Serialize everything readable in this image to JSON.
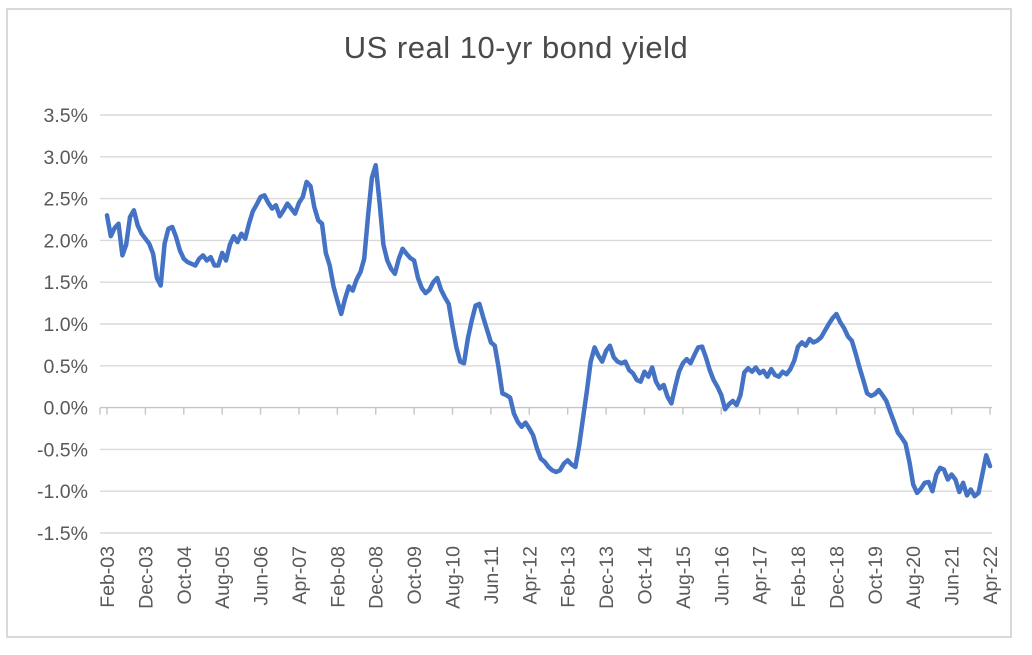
{
  "chart_data": {
    "type": "line",
    "title": "US real 10-yr bond yield",
    "series_name": "US real 10-yr bond yield",
    "legend": "none",
    "grid": "horizontal",
    "x_axis": {
      "start": "Feb-03",
      "end": "Apr-22",
      "frequency": "monthly",
      "points": 231,
      "tick_label_every_n_months": 10,
      "tick_labels": [
        "Feb-03",
        "Dec-03",
        "Oct-04",
        "Aug-05",
        "Jun-06",
        "Apr-07",
        "Feb-08",
        "Dec-08",
        "Oct-09",
        "Aug-10",
        "Jun-11",
        "Apr-12",
        "Feb-13",
        "Dec-13",
        "Oct-14",
        "Aug-15",
        "Jun-16",
        "Apr-17",
        "Feb-18",
        "Dec-18",
        "Oct-19",
        "Aug-20",
        "Jun-21",
        "Apr-22"
      ]
    },
    "y_axis": {
      "min": -1.5,
      "max": 3.5,
      "step": 0.5,
      "format": "percent",
      "tick_labels": [
        "3.5%",
        "3.0%",
        "2.5%",
        "2.0%",
        "1.5%",
        "1.0%",
        "0.5%",
        "0.0%",
        "-0.5%",
        "-1.0%",
        "-1.5%"
      ]
    },
    "values": [
      2.3,
      2.05,
      2.15,
      2.2,
      1.82,
      1.95,
      2.28,
      2.36,
      2.18,
      2.08,
      2.02,
      1.96,
      1.84,
      1.55,
      1.46,
      1.96,
      2.14,
      2.16,
      2.04,
      1.88,
      1.78,
      1.74,
      1.72,
      1.7,
      1.78,
      1.82,
      1.76,
      1.8,
      1.7,
      1.7,
      1.85,
      1.76,
      1.95,
      2.05,
      1.98,
      2.08,
      2.02,
      2.2,
      2.35,
      2.43,
      2.52,
      2.54,
      2.45,
      2.38,
      2.42,
      2.29,
      2.36,
      2.44,
      2.38,
      2.32,
      2.45,
      2.52,
      2.7,
      2.65,
      2.4,
      2.24,
      2.2,
      1.85,
      1.7,
      1.45,
      1.28,
      1.12,
      1.3,
      1.45,
      1.4,
      1.53,
      1.62,
      1.78,
      2.3,
      2.75,
      2.9,
      2.45,
      1.95,
      1.76,
      1.66,
      1.6,
      1.78,
      1.9,
      1.84,
      1.79,
      1.76,
      1.55,
      1.43,
      1.37,
      1.41,
      1.5,
      1.55,
      1.41,
      1.32,
      1.24,
      0.97,
      0.72,
      0.55,
      0.53,
      0.83,
      1.04,
      1.22,
      1.24,
      1.08,
      0.93,
      0.78,
      0.74,
      0.48,
      0.17,
      0.15,
      0.12,
      -0.07,
      -0.17,
      -0.23,
      -0.18,
      -0.25,
      -0.33,
      -0.49,
      -0.61,
      -0.65,
      -0.71,
      -0.75,
      -0.77,
      -0.75,
      -0.67,
      -0.63,
      -0.68,
      -0.71,
      -0.45,
      -0.12,
      0.2,
      0.55,
      0.72,
      0.62,
      0.55,
      0.68,
      0.74,
      0.6,
      0.55,
      0.53,
      0.55,
      0.45,
      0.41,
      0.33,
      0.31,
      0.43,
      0.37,
      0.48,
      0.31,
      0.23,
      0.27,
      0.13,
      0.05,
      0.25,
      0.43,
      0.53,
      0.58,
      0.53,
      0.63,
      0.72,
      0.73,
      0.6,
      0.45,
      0.33,
      0.25,
      0.15,
      -0.02,
      0.04,
      0.08,
      0.03,
      0.15,
      0.42,
      0.47,
      0.43,
      0.48,
      0.41,
      0.44,
      0.37,
      0.46,
      0.39,
      0.37,
      0.43,
      0.4,
      0.46,
      0.56,
      0.73,
      0.78,
      0.74,
      0.82,
      0.78,
      0.8,
      0.84,
      0.92,
      1.0,
      1.07,
      1.12,
      1.02,
      0.95,
      0.85,
      0.8,
      0.65,
      0.48,
      0.33,
      0.17,
      0.14,
      0.16,
      0.21,
      0.15,
      0.08,
      -0.05,
      -0.17,
      -0.3,
      -0.36,
      -0.43,
      -0.65,
      -0.92,
      -1.02,
      -0.97,
      -0.9,
      -0.89,
      -1.0,
      -0.8,
      -0.72,
      -0.74,
      -0.86,
      -0.8,
      -0.86,
      -1.01,
      -0.9,
      -1.05,
      -0.98,
      -1.06,
      -1.02,
      -0.8,
      -0.57,
      -0.7
    ],
    "colors": {
      "line": "#4472C4",
      "gridline": "#D9D9D9",
      "axis": "#C6C6C6",
      "tick_text": "#595959",
      "title_text": "#4A4A4A",
      "background": "#FFFFFF",
      "border": "#D9D9D9"
    }
  }
}
